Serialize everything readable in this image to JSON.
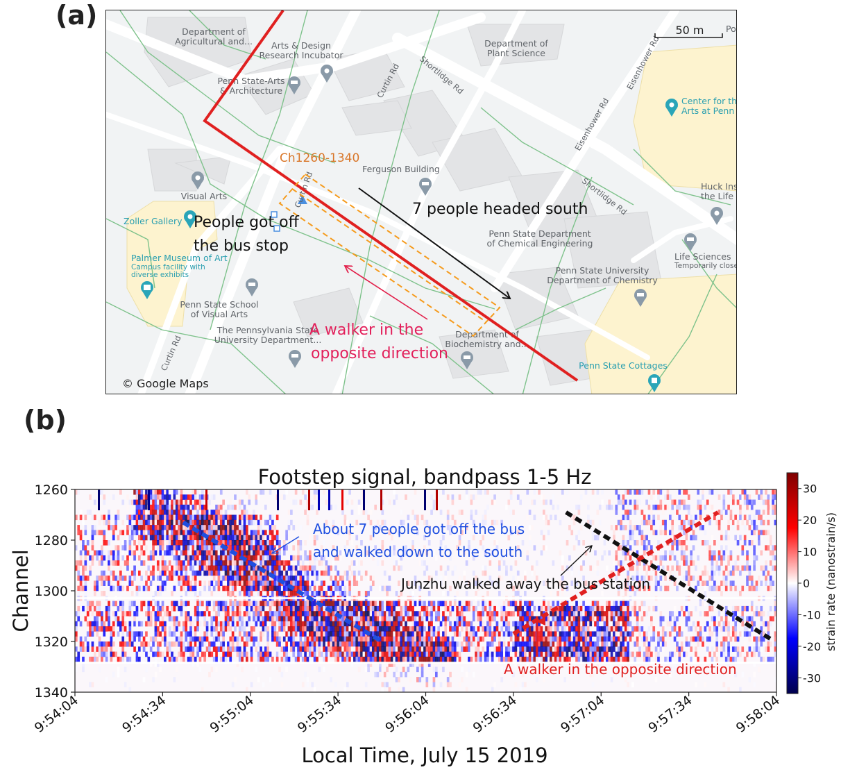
{
  "panel_a_label": "(a)",
  "panel_b_label": "(b)",
  "map": {
    "scale_label": "50 m",
    "copyright": "© Google Maps",
    "channel_box_label": "Ch1260-1340",
    "annotation_people_off": [
      "People got off",
      "the bus stop"
    ],
    "annotation_south": "7 people headed south",
    "annotation_walker": [
      "A walker in the",
      "opposite direction"
    ],
    "place_labels": {
      "dept_ag": [
        "Department of",
        "Agricultural and..."
      ],
      "arts_design": [
        "Arts & Design",
        "Research Incubator"
      ],
      "penn_arts": [
        "Penn State-Arts",
        "& Architecture"
      ],
      "plant_science": [
        "Department of",
        "Plant Science"
      ],
      "center_arts": [
        "Center for the",
        "Arts at Penn"
      ],
      "ferguson": "Ferguson Building",
      "visual_arts": "Visual Arts",
      "zoller": "Zoller Gallery",
      "palmer": [
        "Palmer Museum of Art",
        "Campus facility with",
        "diverse exhibits"
      ],
      "chem_eng": [
        "Penn State Department",
        "of Chemical Engineering"
      ],
      "chemistry": [
        "Penn State University",
        "Department of Chemistry"
      ],
      "huck": [
        "Huck Ins",
        "the Life"
      ],
      "life_sci": [
        "Life Sciences",
        "Temporarily close"
      ],
      "school_visual": [
        "Penn State School",
        "of Visual Arts"
      ],
      "pa_state_univ": [
        "The Pennsylvania State",
        "University Department..."
      ],
      "biochem": [
        "Department of",
        "Biochemistry and..."
      ],
      "cottages": "Penn State Cottages",
      "po": "Po"
    },
    "street_labels": {
      "curtin_top": "Curtin Rd",
      "shortlidge_top": "Shortlidge Rd",
      "eisenhower_a": "Eisenhower Rd",
      "eisenhower_b": "Eisenhower Rd",
      "shortlidge_mid": "Shortlidge Rd",
      "curtin_mid": "Curtin Rd",
      "curtin_bottom": "Curtin Rd"
    }
  },
  "chart_data": {
    "type": "heatmap",
    "title": "Footstep signal, bandpass 1-5 Hz",
    "xlabel": "Local Time, July 15 2019",
    "ylabel": "Channel",
    "x_ticks": [
      "9:54:04",
      "9:54:34",
      "9:55:04",
      "9:55:34",
      "9:56:04",
      "9:56:34",
      "9:57:04",
      "9:57:34",
      "9:58:04"
    ],
    "y_ticks": [
      1260,
      1280,
      1300,
      1320,
      1340
    ],
    "ylim": [
      1340,
      1260
    ],
    "colorbar": {
      "label": "strain rate (nanostrain/s)",
      "ticks": [
        30,
        20,
        10,
        0,
        -10,
        -20,
        -30
      ],
      "range": [
        -35,
        35
      ],
      "colormap": "seismic"
    },
    "annotations": {
      "bus_group": [
        "About 7 people got off the bus",
        "and walked down to the south"
      ],
      "junzhu": "Junzhu walked away the bus station",
      "walker": "A walker in the opposite direction"
    },
    "trend_lines": [
      {
        "name": "bus group",
        "color": "#1f4fe0",
        "from": {
          "time": "9:54:41",
          "channel": 1273
        },
        "to": {
          "time": "9:55:49",
          "channel": 1320
        }
      },
      {
        "name": "junzhu",
        "color": "#111111",
        "from": {
          "time": "9:56:52",
          "channel": 1269
        },
        "to": {
          "time": "9:58:02",
          "channel": 1319
        }
      },
      {
        "name": "walker",
        "color": "#e02020",
        "from": {
          "time": "9:56:34",
          "channel": 1317
        },
        "to": {
          "time": "9:57:44",
          "channel": 1269
        }
      }
    ]
  }
}
